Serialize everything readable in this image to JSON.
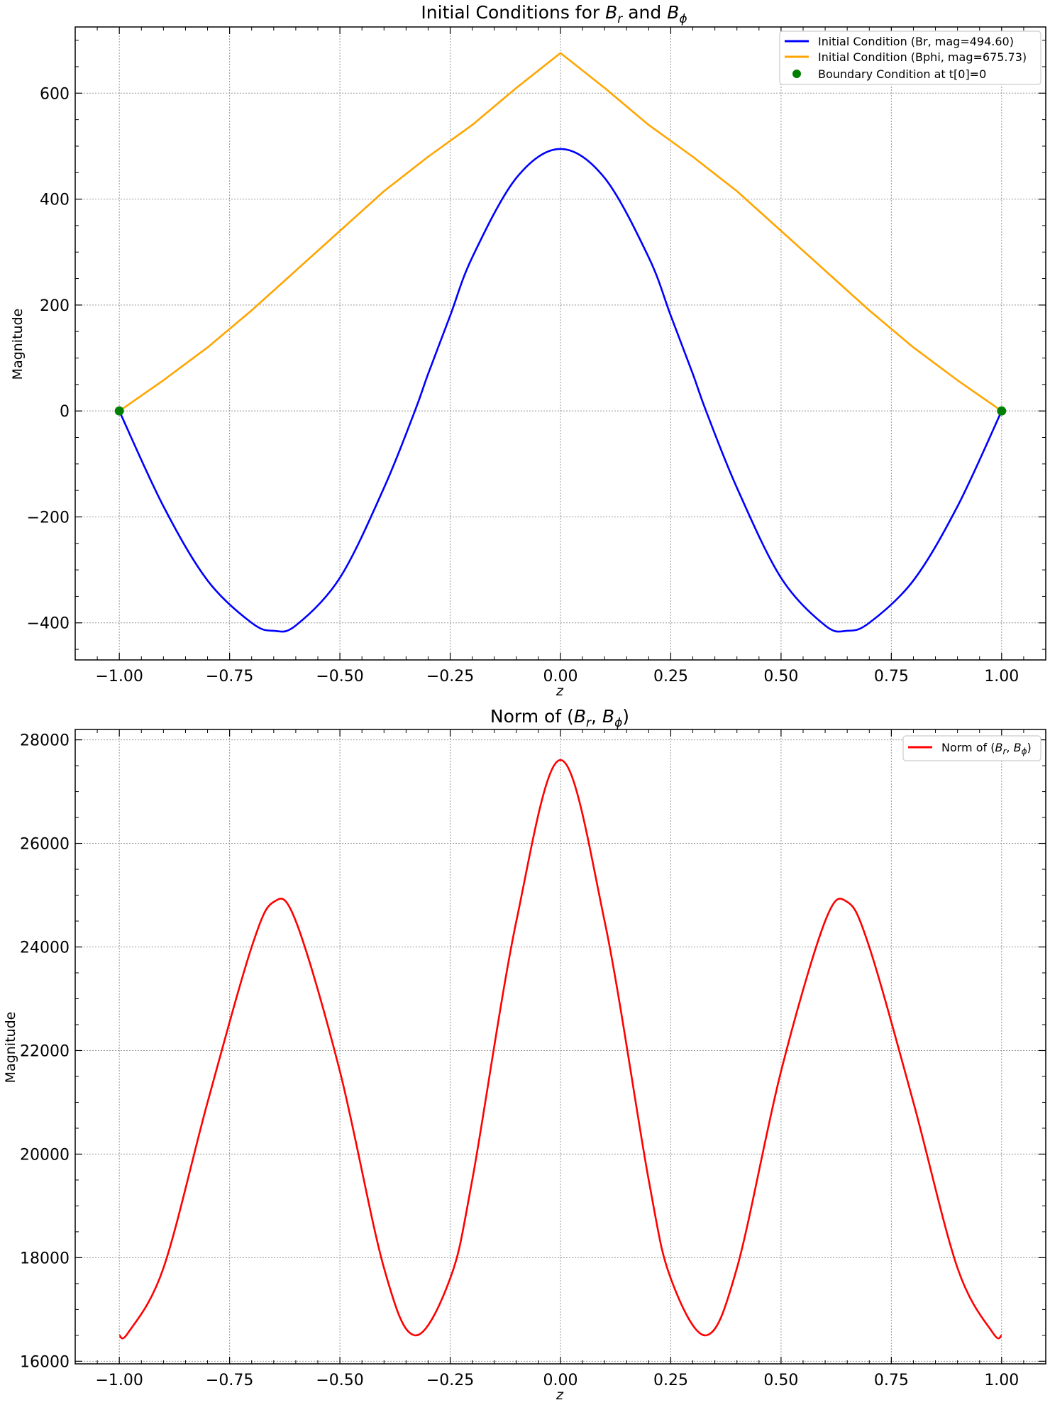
{
  "chart_data": [
    {
      "type": "line",
      "title": "Initial Conditions for B_r and B_ϕ",
      "title_parts": {
        "prefix": "Initial Conditions for ",
        "b1": "B",
        "s1": "r",
        "mid": " and ",
        "b2": "B",
        "s2": "ϕ"
      },
      "xlabel": "z",
      "ylabel": "Magnitude",
      "xlim": [
        -1.1,
        1.1
      ],
      "ylim": [
        -470,
        725
      ],
      "xticks": [
        -1.0,
        -0.75,
        -0.5,
        -0.25,
        0.0,
        0.25,
        0.5,
        0.75,
        1.0
      ],
      "xtick_labels": [
        "−1.00",
        "−0.75",
        "−0.50",
        "−0.25",
        "0.00",
        "0.25",
        "0.50",
        "0.75",
        "1.00"
      ],
      "yticks": [
        -400,
        -200,
        0,
        200,
        400,
        600
      ],
      "ytick_labels": [
        "−400",
        "−200",
        "0",
        "200",
        "400",
        "600"
      ],
      "grid": true,
      "legend_position": "top-right",
      "series": [
        {
          "name": "Initial Condition (Br, mag=494.60)",
          "color": "#0000ff",
          "x": [
            -1.0,
            -0.9,
            -0.8,
            -0.7,
            -0.65,
            -0.6,
            -0.5,
            -0.4,
            -0.33,
            -0.3,
            -0.25,
            -0.2,
            -0.1,
            0.0,
            0.1,
            0.2,
            0.25,
            0.3,
            0.33,
            0.4,
            0.5,
            0.6,
            0.65,
            0.7,
            0.8,
            0.9,
            1.0
          ],
          "y": [
            0,
            -180,
            -320,
            -400,
            -415,
            -405,
            -315,
            -145,
            0,
            70,
            180,
            290,
            440,
            494.6,
            440,
            290,
            180,
            70,
            0,
            -145,
            -315,
            -405,
            -415,
            -400,
            -320,
            -180,
            0
          ]
        },
        {
          "name": "Initial Condition (Bphi, mag=675.73)",
          "color": "#ffa500",
          "x": [
            -1.0,
            -0.9,
            -0.8,
            -0.7,
            -0.6,
            -0.5,
            -0.4,
            -0.3,
            -0.2,
            -0.1,
            0.0,
            0.1,
            0.2,
            0.3,
            0.4,
            0.5,
            0.6,
            0.7,
            0.8,
            0.9,
            1.0
          ],
          "y": [
            0,
            58,
            120,
            190,
            265,
            340,
            415,
            480,
            540,
            610,
            675.73,
            610,
            540,
            480,
            415,
            340,
            265,
            190,
            120,
            58,
            0
          ]
        },
        {
          "name": "Boundary Condition at t[0]=0",
          "color": "#008000",
          "marker": "circle",
          "x": [
            -1.0,
            1.0
          ],
          "y": [
            0,
            0
          ]
        }
      ]
    },
    {
      "type": "line",
      "title": "Norm of (B_r, B_ϕ)",
      "title_parts": {
        "prefix": "Norm of (",
        "b1": "B",
        "s1": "r",
        "mid": ", ",
        "b2": "B",
        "s2": "ϕ",
        "suffix": ")"
      },
      "xlabel": "z",
      "ylabel": "Magnitude",
      "xlim": [
        -1.1,
        1.1
      ],
      "ylim": [
        15950,
        28200
      ],
      "xticks": [
        -1.0,
        -0.75,
        -0.5,
        -0.25,
        0.0,
        0.25,
        0.5,
        0.75,
        1.0
      ],
      "xtick_labels": [
        "−1.00",
        "−0.75",
        "−0.50",
        "−0.25",
        "0.00",
        "0.25",
        "0.50",
        "0.75",
        "1.00"
      ],
      "yticks": [
        16000,
        18000,
        20000,
        22000,
        24000,
        26000,
        28000
      ],
      "ytick_labels": [
        "16000",
        "18000",
        "20000",
        "22000",
        "24000",
        "26000",
        "28000"
      ],
      "grid": true,
      "legend_position": "top-right",
      "series": [
        {
          "name": "Norm of (B_r, B_ϕ)",
          "color": "#ff0000",
          "x": [
            -1.0,
            -0.98,
            -0.9,
            -0.8,
            -0.7,
            -0.65,
            -0.6,
            -0.5,
            -0.4,
            -0.33,
            -0.25,
            -0.2,
            -0.1,
            0.0,
            0.1,
            0.2,
            0.25,
            0.33,
            0.4,
            0.5,
            0.6,
            0.65,
            0.7,
            0.8,
            0.9,
            0.98,
            1.0
          ],
          "y": [
            16500,
            16550,
            17800,
            21000,
            24000,
            24870,
            24500,
            21600,
            17800,
            16500,
            17600,
            19500,
            24500,
            27610,
            24500,
            19500,
            17600,
            16500,
            17800,
            21600,
            24500,
            24870,
            24000,
            21000,
            17800,
            16550,
            16500
          ]
        }
      ]
    }
  ]
}
